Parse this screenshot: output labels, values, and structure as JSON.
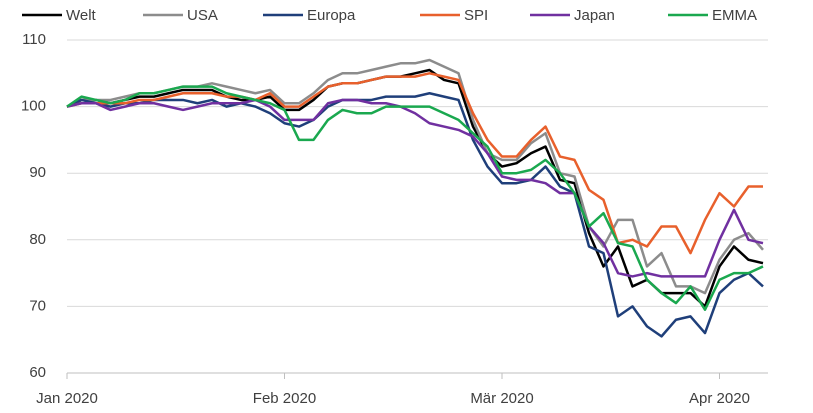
{
  "chart_data": {
    "type": "line",
    "categories": [
      "Jan 2020",
      null,
      null,
      null,
      null,
      null,
      null,
      null,
      null,
      null,
      null,
      null,
      null,
      null,
      null,
      "Feb 2020",
      null,
      null,
      null,
      null,
      null,
      null,
      null,
      null,
      null,
      null,
      null,
      null,
      null,
      null,
      "Mär 2020",
      null,
      null,
      null,
      null,
      null,
      null,
      null,
      null,
      null,
      null,
      null,
      null,
      null,
      null,
      "Apr 2020",
      null,
      null,
      null
    ],
    "series": [
      {
        "name": "Welt",
        "color": "#000000",
        "values": [
          100,
          101,
          101,
          100.5,
          101,
          101.5,
          101.5,
          102,
          102.5,
          102.5,
          102.5,
          101.5,
          101,
          101,
          101.5,
          99.5,
          99.5,
          101,
          103,
          103.5,
          103.5,
          104,
          104.5,
          104.5,
          105,
          105.5,
          104,
          103.5,
          97,
          93,
          91,
          91.5,
          93,
          94,
          89,
          88.5,
          81,
          76,
          79,
          73,
          74,
          72,
          72,
          72,
          70,
          76,
          79,
          77,
          76.5
        ]
      },
      {
        "name": "USA",
        "color": "#8c8c8c",
        "values": [
          100,
          101,
          101,
          101,
          101.5,
          102,
          102,
          102.5,
          103,
          103,
          103.5,
          103,
          102.5,
          102,
          102.5,
          100.5,
          100.5,
          102,
          104,
          105,
          105,
          105.5,
          106,
          106.5,
          106.5,
          107,
          106,
          105,
          98,
          93,
          92,
          92,
          94.5,
          96,
          90,
          89.5,
          82,
          79,
          83,
          83,
          76,
          78,
          73,
          73,
          72,
          77,
          80,
          81,
          78.5
        ]
      },
      {
        "name": "Europa",
        "color": "#1f3f7a",
        "values": [
          100,
          101,
          100.5,
          100,
          100.5,
          100.5,
          101,
          101,
          101,
          100.5,
          101,
          100,
          100.5,
          100,
          99,
          97.5,
          97,
          98,
          100,
          101,
          101,
          101,
          101.5,
          101.5,
          101.5,
          102,
          101.5,
          101,
          95,
          91,
          88.5,
          88.5,
          89,
          91,
          88,
          87,
          79,
          78,
          68.5,
          70,
          67,
          65.5,
          68,
          68.5,
          66,
          72,
          74,
          75,
          73
        ]
      },
      {
        "name": "SPI",
        "color": "#e8602c",
        "values": [
          100,
          100.5,
          100.5,
          100.5,
          100.5,
          101,
          101,
          101.5,
          102,
          102,
          102,
          101.5,
          101.5,
          101,
          102,
          100,
          100,
          101.5,
          103,
          103.5,
          103.5,
          104,
          104.5,
          104.5,
          104.5,
          105,
          104.5,
          104,
          99,
          95,
          92.5,
          92.5,
          95,
          97,
          92.5,
          92,
          87.5,
          86,
          79.5,
          80,
          79,
          82,
          82,
          78,
          83,
          87,
          85,
          88,
          88
        ]
      },
      {
        "name": "Japan",
        "color": "#7030a0",
        "values": [
          100,
          100.5,
          100.5,
          99.5,
          100,
          100.5,
          100.5,
          100,
          99.5,
          100,
          100.5,
          100.5,
          100.5,
          101,
          100,
          98,
          98,
          98,
          100.5,
          101,
          101,
          100.5,
          100.5,
          100,
          99,
          97.5,
          97,
          96.5,
          95.5,
          93,
          89.5,
          89,
          89,
          88.5,
          87,
          87,
          82,
          79.5,
          75,
          74.5,
          75,
          74.5,
          74.5,
          74.5,
          74.5,
          80,
          84.5,
          80,
          79.5
        ]
      },
      {
        "name": "EMMA",
        "color": "#1aa84f",
        "values": [
          100,
          101.5,
          101,
          100.5,
          101,
          102,
          102,
          102.5,
          103,
          103,
          103,
          102,
          101.5,
          101,
          100.5,
          99.5,
          95,
          95,
          98,
          99.5,
          99,
          99,
          100,
          100,
          100,
          100,
          99,
          98,
          96,
          94,
          90,
          90,
          90.5,
          92,
          90,
          87,
          82,
          84,
          79.5,
          79,
          74,
          72,
          70.5,
          73,
          69.5,
          74,
          75,
          75,
          76
        ]
      }
    ],
    "ylim": [
      60,
      110
    ],
    "yticks": [
      60,
      70,
      80,
      90,
      100,
      110
    ],
    "grid": true,
    "legend": "top"
  }
}
